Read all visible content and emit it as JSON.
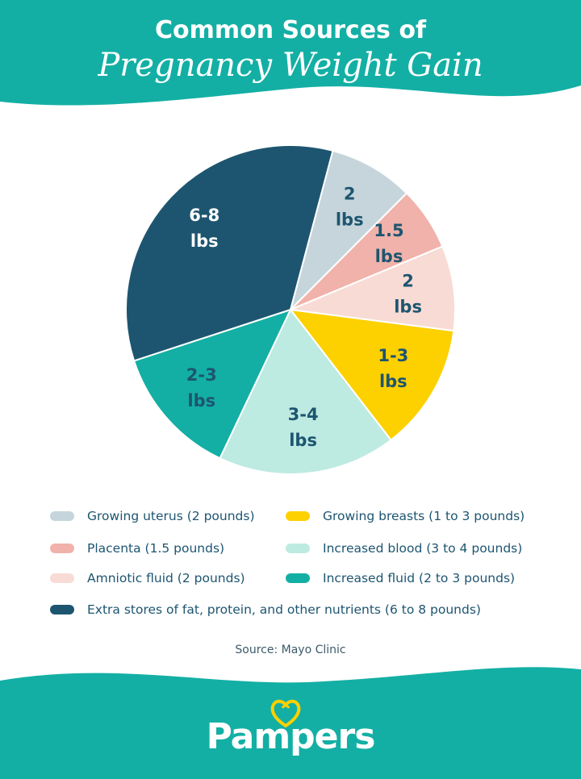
{
  "title": {
    "line1": "Common Sources of",
    "line2": "Pregnancy Weight Gain"
  },
  "chart_data": {
    "type": "pie",
    "title": "Common Sources of Pregnancy Weight Gain",
    "slices": [
      {
        "name": "Growing uterus",
        "label": "2\nlbs",
        "value": 2,
        "color": "#c5d5db",
        "label_color": "#1d5570"
      },
      {
        "name": "Placenta",
        "label": "1.5\nlbs",
        "value": 1.5,
        "color": "#f0b2aa",
        "label_color": "#1d5570"
      },
      {
        "name": "Amniotic fluid",
        "label": "2\nlbs",
        "value": 2,
        "color": "#f8dbd4",
        "label_color": "#1d5570"
      },
      {
        "name": "Growing breasts",
        "label": "1-3\nlbs",
        "value": 3,
        "color": "#fdd000",
        "label_color": "#1d5570"
      },
      {
        "name": "Increased blood",
        "label": "3-4\nlbs",
        "value": 4.2,
        "color": "#bdeae1",
        "label_color": "#1d5570"
      },
      {
        "name": "Increased fluid",
        "label": "2-3\nlbs",
        "value": 3.1,
        "color": "#13afa4",
        "label_color": "#1d5570"
      },
      {
        "name": "Extra stores of fat, protein, and other nutrients",
        "label": "6-8\nlbs",
        "value": 8.2,
        "color": "#1d5570",
        "label_color": "#ffffff"
      }
    ],
    "legend_placement": "bottom"
  },
  "legend": {
    "items": [
      {
        "text": "Growing uterus (2 pounds)",
        "color": "#c5d5db"
      },
      {
        "text": "Growing breasts (1 to 3 pounds)",
        "color": "#fdd000"
      },
      {
        "text": "Placenta (1.5 pounds)",
        "color": "#f0b2aa"
      },
      {
        "text": "Increased blood (3 to 4 pounds)",
        "color": "#bdeae1"
      },
      {
        "text": "Amniotic fluid (2 pounds)",
        "color": "#f8dbd4"
      },
      {
        "text": "Increased fluid (2 to 3 pounds)",
        "color": "#13afa4"
      },
      {
        "text": "Extra stores of fat, protein, and other nutrients (6 to 8 pounds)",
        "color": "#1d5570"
      }
    ]
  },
  "source": "Source: Mayo Clinic",
  "brand": {
    "name": "Pampers",
    "color": "#13afa4",
    "mark_color": "#fdd000",
    "icon": "pampers-heart-icon"
  }
}
